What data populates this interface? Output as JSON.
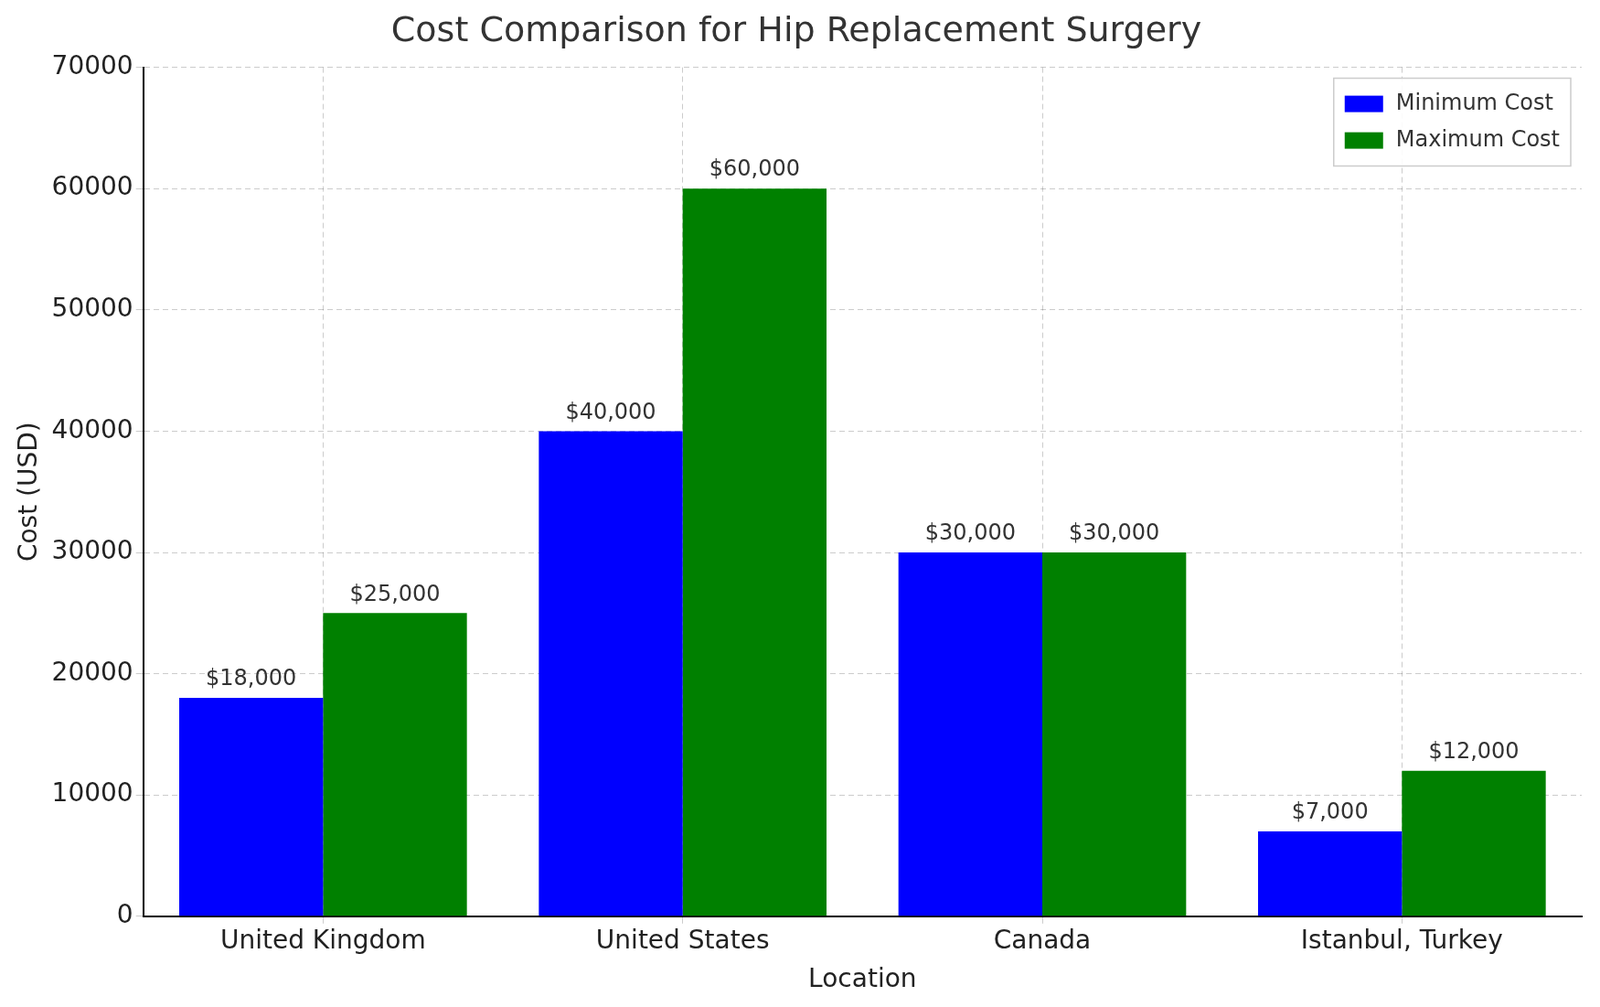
{
  "chart_data": {
    "type": "bar",
    "title": "Cost Comparison for Hip Replacement Surgery",
    "x_label": "Location",
    "y_label": "Cost (USD)",
    "categories": [
      "United Kingdom",
      "United States",
      "Canada",
      "Istanbul, Turkey"
    ],
    "series": [
      {
        "name": "Minimum Cost",
        "color": "#0000ff",
        "values": [
          18000,
          40000,
          30000,
          7000
        ],
        "value_labels": [
          "$18,000",
          "$40,000",
          "$30,000",
          "$7,000"
        ]
      },
      {
        "name": "Maximum Cost",
        "color": "#008000",
        "values": [
          25000,
          60000,
          30000,
          12000
        ],
        "value_labels": [
          "$25,000",
          "$60,000",
          "$30,000",
          "$12,000"
        ]
      }
    ],
    "ylim": [
      0,
      70000
    ],
    "yticks": [
      0,
      10000,
      20000,
      30000,
      40000,
      50000,
      60000,
      70000
    ],
    "grid": true,
    "legend": "upper right",
    "data_labels": true
  }
}
